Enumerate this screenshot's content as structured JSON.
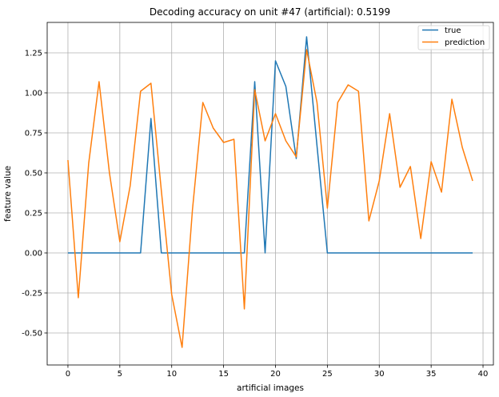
{
  "chart_data": {
    "type": "line",
    "title": "Decoding accuracy on unit #47 (artificial): 0.5199",
    "xlabel": "artificial images",
    "ylabel": "feature value",
    "xlim": [
      -2,
      41
    ],
    "ylim": [
      -0.7,
      1.44
    ],
    "xticks": [
      0,
      5,
      10,
      15,
      20,
      25,
      30,
      35,
      40
    ],
    "xtick_labels": [
      "0",
      "5",
      "10",
      "15",
      "20",
      "25",
      "30",
      "35",
      "40"
    ],
    "yticks": [
      -0.5,
      -0.25,
      0.0,
      0.25,
      0.5,
      0.75,
      1.0,
      1.25
    ],
    "ytick_labels": [
      "-0.50",
      "-0.25",
      "0.00",
      "0.25",
      "0.50",
      "0.75",
      "1.00",
      "1.25"
    ],
    "grid": true,
    "legend_position": "top-right",
    "x": [
      0,
      1,
      2,
      3,
      4,
      5,
      6,
      7,
      8,
      9,
      10,
      11,
      12,
      13,
      14,
      15,
      16,
      17,
      18,
      19,
      20,
      21,
      22,
      23,
      24,
      25,
      26,
      27,
      28,
      29,
      30,
      31,
      32,
      33,
      34,
      35,
      36,
      37,
      38,
      39
    ],
    "series": [
      {
        "name": "true",
        "color": "#1f77b4",
        "values": [
          0,
          0,
          0,
          0,
          0,
          0,
          0,
          0,
          0.84,
          0,
          0,
          0,
          0,
          0,
          0,
          0,
          0,
          0,
          1.07,
          0,
          1.2,
          1.04,
          0.59,
          1.35,
          0.67,
          0,
          0,
          0,
          0,
          0,
          0,
          0,
          0,
          0,
          0,
          0,
          0,
          0,
          0,
          0
        ]
      },
      {
        "name": "prediction",
        "color": "#ff7f0e",
        "values": [
          0.58,
          -0.28,
          0.56,
          1.07,
          0.5,
          0.07,
          0.42,
          1.01,
          1.06,
          0.39,
          -0.26,
          -0.59,
          0.27,
          0.94,
          0.78,
          0.69,
          0.71,
          -0.35,
          1.02,
          0.7,
          0.87,
          0.7,
          0.6,
          1.27,
          0.94,
          0.28,
          0.94,
          1.05,
          1.01,
          0.2,
          0.45,
          0.87,
          0.41,
          0.54,
          0.09,
          0.57,
          0.38,
          0.96,
          0.66,
          0.45
        ]
      }
    ]
  }
}
